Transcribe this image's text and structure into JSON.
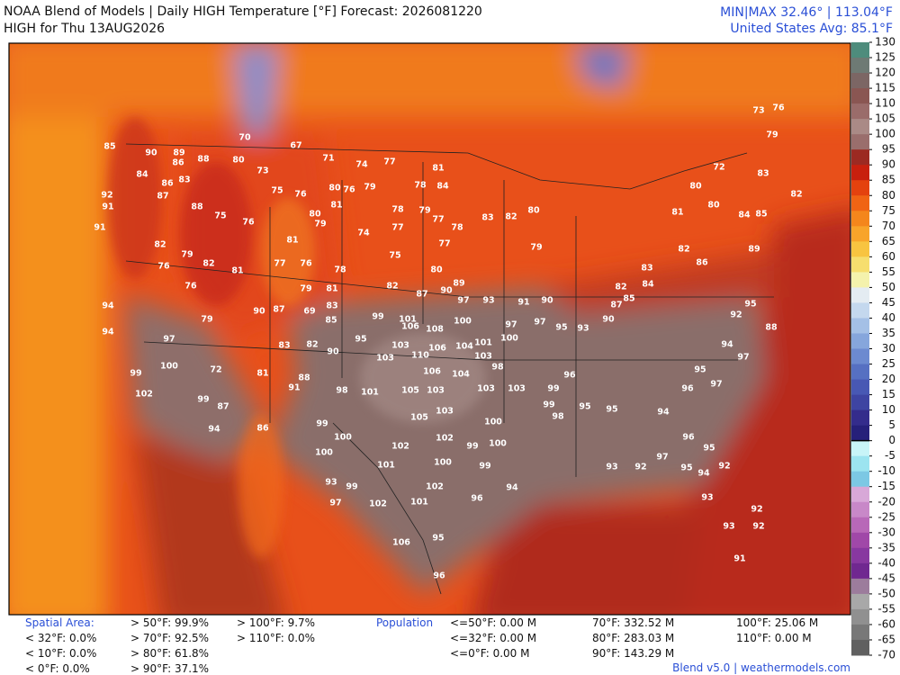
{
  "header": {
    "title": "NOAA Blend of Models | Daily HIGH Temperature [°F] Forecast: 2026081220",
    "subtitle": "HIGH for Thu 13AUG2026",
    "minmax": "MIN|MAX 32.46° | 113.04°F",
    "average": "United States Avg: 85.1°F"
  },
  "colorbar": {
    "ticks": [
      130,
      125,
      120,
      115,
      110,
      105,
      100,
      95,
      90,
      85,
      80,
      75,
      70,
      65,
      60,
      55,
      50,
      45,
      40,
      35,
      30,
      25,
      20,
      15,
      10,
      5,
      0,
      -5,
      -10,
      -15,
      -20,
      -25,
      -30,
      -35,
      -40,
      -45,
      -50,
      -55,
      -60,
      -65,
      -70
    ],
    "colors": [
      "#4e8c7c",
      "#6e7a74",
      "#7c6664",
      "#8a5652",
      "#9a6c6a",
      "#aa8a86",
      "#9a6e6c",
      "#9c2a22",
      "#c8200e",
      "#e4420e",
      "#f06414",
      "#f4861c",
      "#f8a42a",
      "#f8c440",
      "#f6de6e",
      "#f4f2ac",
      "#e4ecf2",
      "#c4d8ee",
      "#a4c0e6",
      "#86a6dc",
      "#6c8ad0",
      "#5670c2",
      "#4858b4",
      "#3e44a2",
      "#342c8c",
      "#26207a",
      "#c8f4f8",
      "#9ce4f0",
      "#7cc8e4",
      "#d8a8d8",
      "#c888c8",
      "#b868b8",
      "#a048a8",
      "#8838a0",
      "#702890",
      "#9c7c9c",
      "#a8a8a8",
      "#909090",
      "#787878",
      "#606060"
    ]
  },
  "map": {
    "station_values": [
      85,
      90,
      89,
      86,
      88,
      84,
      86,
      83,
      92,
      87,
      88,
      91,
      91,
      75,
      76,
      82,
      79,
      82,
      81,
      76,
      76,
      94,
      94,
      97,
      100,
      79,
      72,
      99,
      102,
      99,
      87,
      94,
      86,
      91,
      88,
      81,
      90,
      87,
      83,
      82,
      90,
      95,
      85,
      69,
      79,
      81,
      83,
      77,
      76,
      78,
      75,
      74,
      78,
      77,
      79,
      77,
      78,
      77,
      80,
      82,
      87,
      90,
      89,
      97,
      93,
      91,
      90,
      99,
      101,
      108,
      100,
      106,
      103,
      106,
      104,
      101,
      110,
      103,
      106,
      104,
      103,
      105,
      103,
      103,
      103,
      98,
      101,
      105,
      103,
      100,
      99,
      100,
      100,
      102,
      102,
      99,
      100,
      101,
      100,
      99,
      102,
      102,
      101,
      96,
      94,
      97,
      99,
      93,
      106,
      95,
      96,
      97,
      97,
      100,
      95,
      98,
      99,
      96,
      99,
      98,
      95,
      95,
      93,
      92,
      97,
      95,
      94,
      93,
      92,
      93,
      92,
      92,
      91,
      96,
      94,
      96,
      95,
      97,
      95,
      94,
      92,
      95,
      97,
      88,
      86,
      89,
      82,
      83,
      84,
      82,
      85,
      87,
      90,
      93,
      79,
      80,
      83,
      82,
      81,
      80,
      84,
      85,
      82,
      83,
      80,
      76,
      79,
      72,
      73,
      77,
      81,
      84,
      76,
      81,
      79,
      81,
      80,
      73,
      75,
      76,
      80,
      80,
      67,
      70,
      71,
      74,
      79,
      78
    ]
  },
  "footer": {
    "spatial_area": {
      "label": "Spatial Area:",
      "columns": [
        [
          "< 32°F: 0.0%",
          "< 10°F: 0.0%",
          "< 0°F: 0.0%"
        ],
        [
          "> 50°F: 99.9%",
          "> 70°F: 92.5%",
          "> 80°F: 61.8%",
          "> 90°F: 37.1%"
        ],
        [
          "> 100°F: 9.7%",
          "> 110°F: 0.0%"
        ]
      ]
    },
    "population": {
      "label": "Population",
      "columns": [
        [
          "<=50°F: 0.00 M",
          "<=32°F: 0.00 M",
          "<=0°F: 0.00 M"
        ],
        [
          "70°F: 332.52 M",
          "80°F: 283.03 M",
          "90°F: 143.29 M"
        ],
        [
          "100°F: 25.06 M",
          "110°F: 0.00 M"
        ]
      ]
    },
    "credit": "Blend v5.0 | weathermodels.com"
  }
}
